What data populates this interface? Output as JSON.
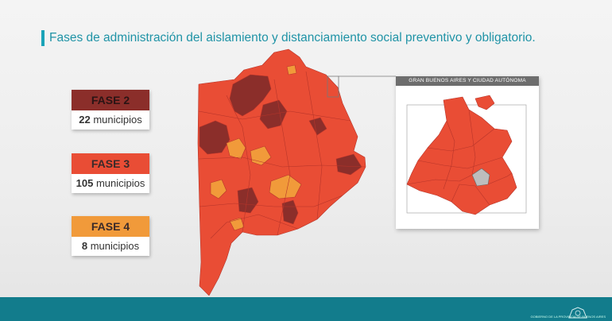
{
  "title": "Fases de administración del aislamiento y distanciamiento social preventivo y obligatorio.",
  "legend": [
    {
      "label": "FASE 2",
      "count": "22",
      "unit": "municipios",
      "color": "#8b2e2a"
    },
    {
      "label": "FASE 3",
      "count": "105",
      "unit": "municipios",
      "color": "#e94d35"
    },
    {
      "label": "FASE 4",
      "count": "8",
      "unit": "municipios",
      "color": "#f19a3a"
    }
  ],
  "inset": {
    "title": "GRAN BUENOS AIRES Y CIUDAD AUTÓNOMA"
  },
  "colors": {
    "accent": "#1aa3b8",
    "footer": "#127c8c",
    "phase2": "#8b2e2a",
    "phase3": "#e94d35",
    "phase4": "#f19a3a",
    "caba": "#bdbdbd"
  },
  "footer": {
    "logo": "province-shield-icon",
    "text": "GOBIERNO DE LA PROVINCIA DE BUENOS AIRES"
  }
}
